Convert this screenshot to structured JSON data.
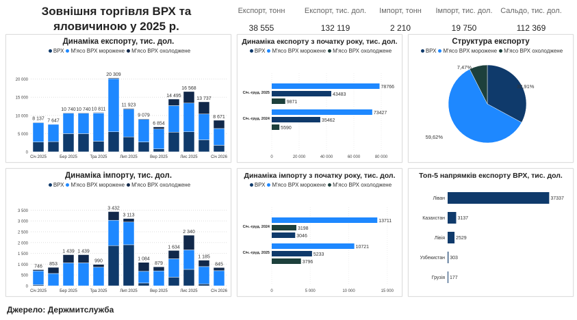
{
  "header": {
    "title_line1": "Зовнішня торгівля ВРХ та",
    "title_line2": "яловичиною у 2025 р."
  },
  "kpis": [
    {
      "label": "Експорт, тонн",
      "value": "38 555"
    },
    {
      "label": "Експорт, тис. дол.",
      "value": "132 119"
    },
    {
      "label": "Імпорт, тонн",
      "value": "2 210"
    },
    {
      "label": "Імпорт, тис. дол.",
      "value": "19 750"
    },
    {
      "label": "Сальдо, тис. дол.",
      "value": "112 369"
    }
  ],
  "legend": {
    "vrh": "ВРХ",
    "frozen": "М'ясо ВРХ морожене",
    "chilled": "М'ясо ВРХ охолоджене"
  },
  "colors": {
    "vrh": "#0f3a6b",
    "frozen": "#1e88ff",
    "chilled": "#11284a",
    "chilled_teal": "#1d403c",
    "top5": "#0f3a6b"
  },
  "source": "Джерело: Держмитслужба",
  "chart_data": [
    {
      "id": "export_monthly",
      "type": "bar",
      "stacked": true,
      "title": "Динаміка експорту, тис. дол.",
      "categories": [
        "Січ 2025",
        "Лют 2025",
        "Бер 2025",
        "Кві 2025",
        "Тра 2025",
        "Чер 2025",
        "Лип 2025",
        "Сер 2025",
        "Вер 2025",
        "Жов 2025",
        "Лис 2025",
        "Гру 2025",
        "Січ 2026"
      ],
      "x_tick_labels": [
        "Січ 2025",
        "",
        "Бер 2025",
        "",
        "Тра 2025",
        "",
        "Лип 2025",
        "",
        "Вер 2025",
        "",
        "Лис 2025",
        "",
        "Січ 2026"
      ],
      "totals": [
        "8 137",
        "7 647",
        "10 740",
        "10 740",
        "10 811",
        "20 309",
        "11 923",
        "9 079",
        "6 854",
        "14 495",
        "16 568",
        "13 737",
        "8 671"
      ],
      "series": [
        {
          "name": "ВРХ",
          "values": [
            2700,
            2800,
            5000,
            5000,
            2900,
            5500,
            4100,
            2700,
            800,
            5400,
            5500,
            3300,
            1800
          ]
        },
        {
          "name": "М'ясо ВРХ морожене",
          "values": [
            5300,
            4750,
            5600,
            5600,
            7750,
            14600,
            7600,
            6200,
            5450,
            7300,
            7900,
            7100,
            4600
          ]
        },
        {
          "name": "М'ясо ВРХ охолоджене",
          "values": [
            137,
            97,
            140,
            140,
            161,
            209,
            223,
            179,
            604,
            1795,
            3168,
            3337,
            2271
          ]
        }
      ],
      "ylim": [
        0,
        22000
      ],
      "yticks": [
        0,
        5000,
        10000,
        15000,
        20000
      ],
      "ytick_labels": [
        "0",
        "5 000",
        "10 000",
        "15 000",
        "20 000"
      ]
    },
    {
      "id": "import_monthly",
      "type": "bar",
      "stacked": true,
      "title": "Динаміка імпорту, тис. дол.",
      "categories": [
        "Січ 2025",
        "Лют 2025",
        "Бер 2025",
        "Кві 2025",
        "Тра 2025",
        "Чер 2025",
        "Лип 2025",
        "Сер 2025",
        "Вер 2025",
        "Жов 2025",
        "Лис 2025",
        "Гру 2025",
        "Січ 2026"
      ],
      "x_tick_labels": [
        "Січ 2025",
        "",
        "Бер 2025",
        "",
        "Тра 2025",
        "",
        "Лип 2025",
        "",
        "Вер 2025",
        "",
        "Лис 2025",
        "",
        "Січ 2026"
      ],
      "totals": [
        "746",
        "853",
        "1 439",
        "1 439",
        "990",
        "3 432",
        "3 113",
        "1 084",
        "879",
        "1 634",
        "2 340",
        "1 185",
        "845"
      ],
      "series": [
        {
          "name": "ВРХ",
          "values": [
            50,
            0,
            0,
            0,
            0,
            1860,
            1900,
            130,
            0,
            400,
            760,
            90,
            0
          ]
        },
        {
          "name": "М'ясо ВРХ морожене",
          "values": [
            640,
            570,
            1060,
            1060,
            860,
            1170,
            1050,
            540,
            690,
            850,
            900,
            800,
            700
          ]
        },
        {
          "name": "М'ясо ВРХ охолоджене",
          "values": [
            56,
            283,
            379,
            379,
            130,
            402,
            163,
            414,
            189,
            384,
            680,
            295,
            145
          ]
        }
      ],
      "ylim": [
        0,
        3700
      ],
      "yticks": [
        0,
        500,
        1000,
        1500,
        2000,
        2500,
        3000,
        3500
      ],
      "ytick_labels": [
        "0",
        "500",
        "1 000",
        "1 500",
        "2 000",
        "2 500",
        "3 000",
        "3 500"
      ]
    },
    {
      "id": "export_ytd",
      "type": "bar",
      "orientation": "horizontal",
      "title": "Динаміка експорту з початку року, тис. дол.",
      "groups": [
        {
          "label": "Січ.-груд. 2025",
          "bars": [
            {
              "series": "frozen",
              "value": 78766
            },
            {
              "series": "vrh",
              "value": 43483
            },
            {
              "series": "chilled",
              "value": 9871
            }
          ]
        },
        {
          "label": "Січ.-груд. 2024",
          "bars": [
            {
              "series": "frozen",
              "value": 73427
            },
            {
              "series": "vrh",
              "value": 35462
            },
            {
              "series": "chilled",
              "value": 5590
            }
          ]
        }
      ],
      "xlim": [
        0,
        90000
      ],
      "xticks": [
        0,
        20000,
        40000,
        60000,
        80000
      ],
      "xtick_labels": [
        "0",
        "20 000",
        "40 000",
        "60 000",
        "80 000"
      ]
    },
    {
      "id": "import_ytd",
      "type": "bar",
      "orientation": "horizontal",
      "title": "Динаміка імпорту з початку року, тис. дол.",
      "groups": [
        {
          "label": "Січ.-груд. 2024",
          "bars": [
            {
              "series": "frozen",
              "value": 13711
            },
            {
              "series": "chilled",
              "value": 3198
            },
            {
              "series": "vrh",
              "value": 3046
            }
          ]
        },
        {
          "label": "Січ.-груд. 2025",
          "bars": [
            {
              "series": "frozen",
              "value": 10721
            },
            {
              "series": "vrh",
              "value": 5233
            },
            {
              "series": "chilled",
              "value": 3796
            }
          ]
        }
      ],
      "xlim": [
        0,
        16000
      ],
      "xticks": [
        0,
        5000,
        10000,
        15000
      ],
      "xtick_labels": [
        "0",
        "5 000",
        "10 000",
        "15 000"
      ]
    },
    {
      "id": "export_structure",
      "type": "pie",
      "title": "Структура експорту",
      "slices": [
        {
          "series": "vrh",
          "value": 32.91,
          "label": "32,91%"
        },
        {
          "series": "frozen",
          "value": 59.62,
          "label": "59,62%"
        },
        {
          "series": "chilled",
          "value": 7.47,
          "label": "7,47%"
        }
      ]
    },
    {
      "id": "top5",
      "type": "bar",
      "orientation": "horizontal",
      "title": "Топ-5 напрямків експорту ВРХ, тис. дол.",
      "categories": [
        "Ліван",
        "Казахстан",
        "Лівія",
        "Узбекистан",
        "Грузія"
      ],
      "values": [
        37337,
        3137,
        2529,
        303,
        177
      ],
      "xlim": [
        0,
        38500
      ]
    }
  ]
}
